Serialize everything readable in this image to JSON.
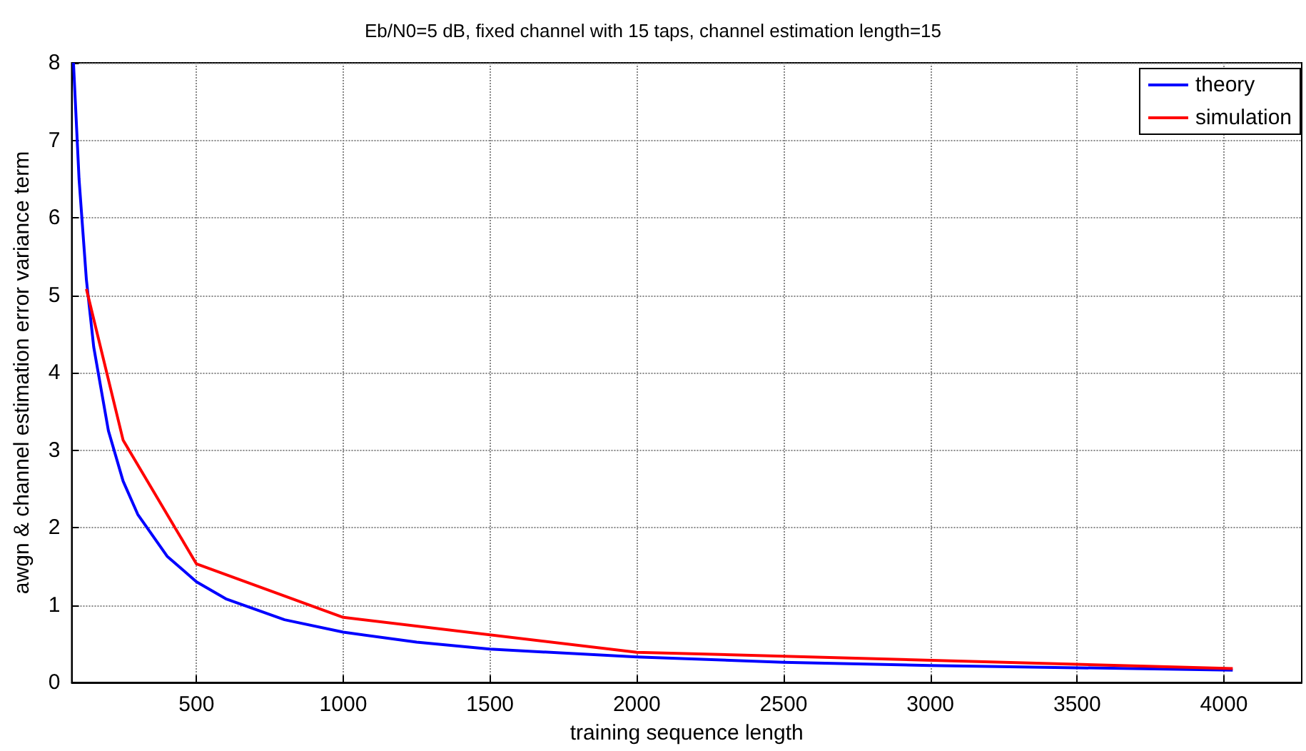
{
  "chart_data": {
    "type": "line",
    "title": "Eb/N0=5 dB, fixed channel with 15 taps, channel estimation length=15",
    "xlabel": "training sequence length",
    "ylabel": "awgn & channel estimation error variance term",
    "series": [
      {
        "name": "theory",
        "color": "#0000ff",
        "x": [
          81,
          100,
          125,
          150,
          200,
          250,
          300,
          400,
          500,
          600,
          800,
          1000,
          1250,
          1500,
          2000,
          2500,
          3000,
          3500,
          4030
        ],
        "values": [
          8.0,
          6.5,
          5.2,
          4.33,
          3.25,
          2.6,
          2.17,
          1.63,
          1.3,
          1.08,
          0.81,
          0.65,
          0.52,
          0.43,
          0.33,
          0.26,
          0.22,
          0.19,
          0.16
        ]
      },
      {
        "name": "simulation",
        "color": "#ff0000",
        "x": [
          125,
          250,
          500,
          1000,
          2000,
          4030
        ],
        "values": [
          5.08,
          3.13,
          1.53,
          0.84,
          0.39,
          0.18
        ]
      }
    ],
    "xlim": [
      75,
      4265
    ],
    "xticks": [
      500,
      1000,
      1500,
      2000,
      2500,
      3000,
      3500,
      4000
    ],
    "ylim": [
      0,
      8
    ],
    "yticks": [
      0,
      1,
      2,
      3,
      4,
      5,
      6,
      7,
      8
    ],
    "grid": true,
    "legend": "top right",
    "marker": "none",
    "line_style": "solid"
  }
}
